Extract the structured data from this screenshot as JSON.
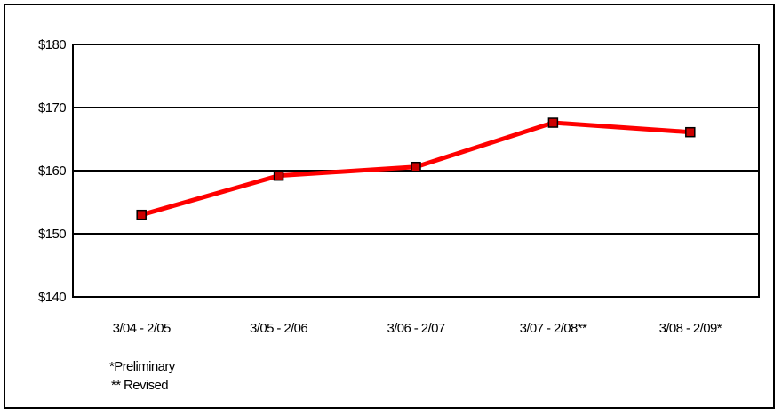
{
  "chart_data": {
    "type": "line",
    "title": "",
    "xlabel": "",
    "ylabel": "",
    "categories": [
      "3/04 - 2/05",
      "3/05 - 2/06",
      "3/06 - 2/07",
      "3/07 - 2/08**",
      "3/08 - 2/09*"
    ],
    "series": [
      {
        "values": [
          153.0,
          159.2,
          160.6,
          167.6,
          166.1
        ],
        "color": "#ff0000",
        "marker": "square",
        "marker_color": "#cc0000"
      }
    ],
    "ylim": [
      140,
      180
    ],
    "yticks": [
      140,
      150,
      160,
      170,
      180
    ],
    "ytick_labels": [
      "$140",
      "$150",
      "$160",
      "$170",
      "$180"
    ],
    "grid": "horizontal",
    "legend": "none"
  },
  "notes": {
    "preliminary": "*Preliminary",
    "revised": "** Revised"
  }
}
